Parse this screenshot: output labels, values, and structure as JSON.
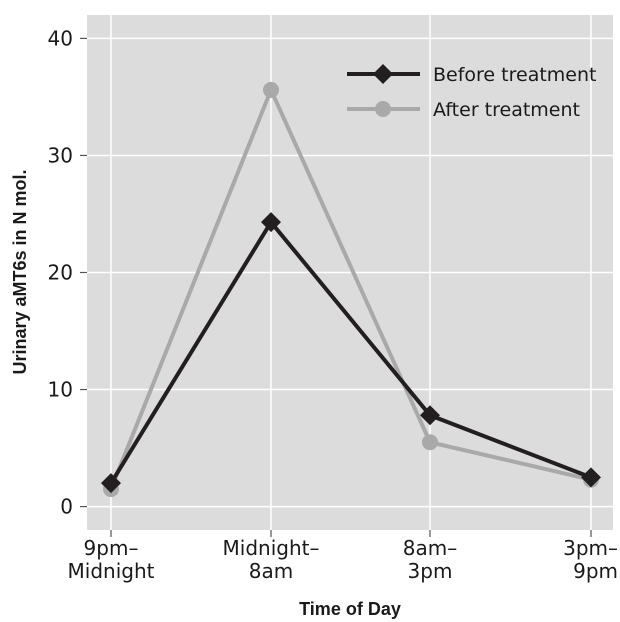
{
  "chart_data": {
    "type": "line",
    "xlabel": "Time of Day",
    "ylabel": "Urinary aMT6s in N mol.",
    "ylim": [
      -2,
      42
    ],
    "yticks": [
      0,
      10,
      20,
      30,
      40
    ],
    "categories": [
      [
        "9pm–",
        "Midnight"
      ],
      [
        "Midnight–",
        "8am"
      ],
      [
        "8am–",
        "3pm"
      ],
      [
        "3pm–",
        "9pm"
      ]
    ],
    "grid": true,
    "legend_position": "top-right",
    "series": [
      {
        "name": "Before treatment",
        "values": [
          2.0,
          24.3,
          7.8,
          2.5
        ],
        "color": "#231f20",
        "marker": "diamond"
      },
      {
        "name": "After treatment",
        "values": [
          1.5,
          35.6,
          5.5,
          2.3
        ],
        "color": "#a9a9a9",
        "marker": "circle"
      }
    ],
    "plot_background": "#dcdcdc"
  }
}
